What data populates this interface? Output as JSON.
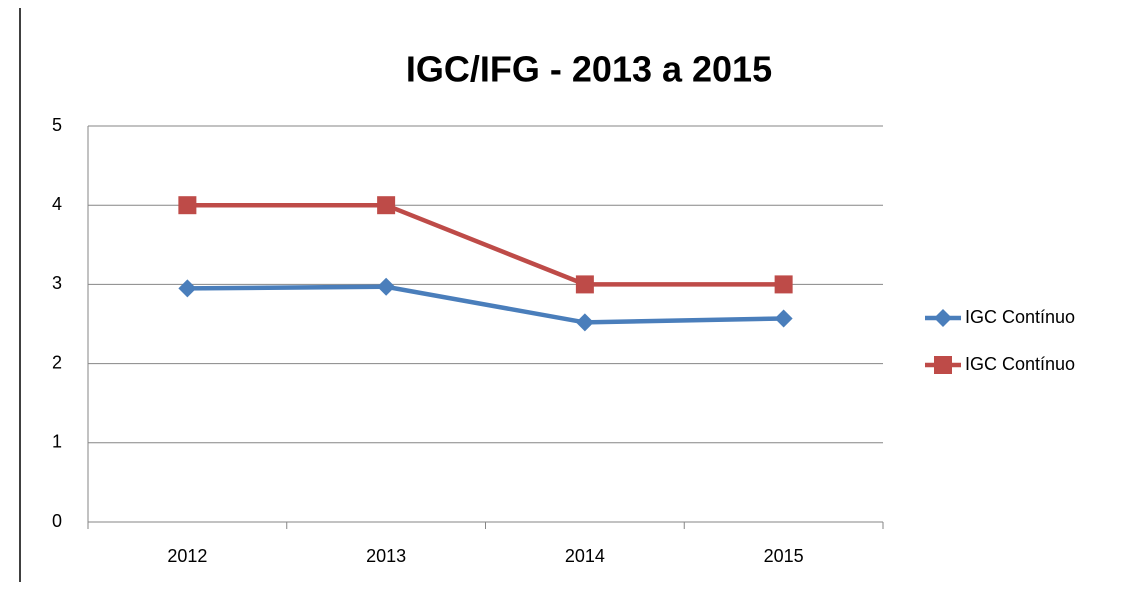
{
  "chart_data": {
    "type": "line",
    "title": "IGC/IFG - 2013 a 2015",
    "categories": [
      "2012",
      "2013",
      "2014",
      "2015"
    ],
    "series": [
      {
        "name": "IGC Contínuo",
        "color": "#4a7ebb",
        "marker": "diamond",
        "values": [
          2.95,
          2.97,
          2.52,
          2.57
        ]
      },
      {
        "name": "IGC Contínuo",
        "color": "#be4b48",
        "marker": "square",
        "values": [
          4,
          4,
          3,
          3
        ]
      }
    ],
    "ylim": [
      0,
      5
    ],
    "yticks": [
      0,
      1,
      2,
      3,
      4,
      5
    ],
    "grid": true,
    "legend": "right"
  }
}
